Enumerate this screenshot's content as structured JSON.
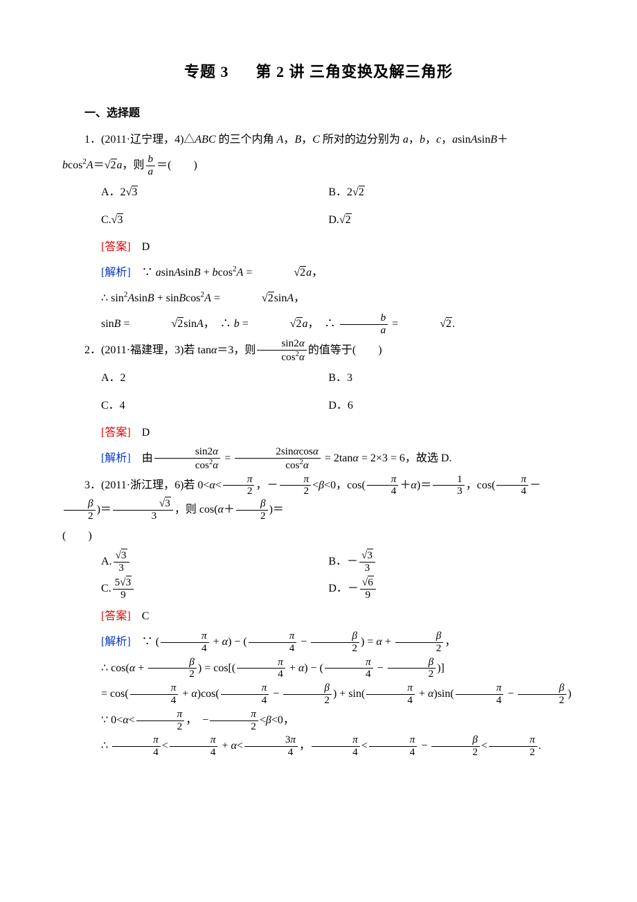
{
  "title_prefix": "专题 3",
  "title_main": "第 2 讲  三角变换及解三角形",
  "section_heading": "一、选择题",
  "colors": {
    "answer": "#e00000",
    "analysis": "#0033cc",
    "text": "#000000",
    "bg": "#ffffff"
  },
  "q1": {
    "stem_a": "1．(2011·辽宁理，4)△",
    "stem_b": "ABC",
    "stem_c": " 的三个内角 ",
    "stem_d": "A",
    "stem_e": "，",
    "stem_f": "B",
    "stem_g": "，",
    "stem_h": "C",
    "stem_i": " 所对的边分别为 ",
    "stem_j": "a",
    "stem_k": "，",
    "stem_l": "b",
    "stem_m": "，",
    "stem_n": "c",
    "stem_o": "，",
    "stem_p": "a",
    "stem_q": "sin",
    "stem_r": "A",
    "stem_s": "sin",
    "stem_t": "B",
    "stem_u": "＋",
    "line2_a": "b",
    "line2_b": "cos",
    "line2_sup": "2",
    "line2_c": "A",
    "line2_d": "＝",
    "line2_e": "2",
    "line2_f": "a",
    "line2_g": "，则",
    "frac_num": "b",
    "frac_den": "a",
    "line2_h": "＝(　　)",
    "optA": "A．2",
    "optA_rad": "3",
    "optB": "B．2",
    "optB_rad": "2",
    "optC": "C.",
    "optC_rad": "3",
    "optD": "D.",
    "optD_rad": "2",
    "ans_label": "[答案]",
    "ans": "D",
    "ana_label": "[解析]",
    "ana1_a": "∵ ",
    "ana1_b": "a",
    "ana1_c": "sin",
    "ana1_d": "A",
    "ana1_e": "sin",
    "ana1_f": "B",
    "ana1_g": " + ",
    "ana1_h": "b",
    "ana1_i": "cos",
    "ana1_j": "A",
    "ana1_k": " = ",
    "ana1_rad": "2",
    "ana1_l": "a",
    "ana1_m": "，",
    "ana2_a": "∴ sin",
    "ana2_b": "A",
    "ana2_c": "sin",
    "ana2_d": "B",
    "ana2_e": " + sin",
    "ana2_f": "B",
    "ana2_g": "cos",
    "ana2_h": "A",
    "ana2_i": " = ",
    "ana2_rad": "2",
    "ana2_j": "sin",
    "ana2_k": "A",
    "ana2_l": "，",
    "ana3_a": "sin",
    "ana3_b": "B",
    "ana3_c": " = ",
    "ana3_rad1": "2",
    "ana3_d": "sin",
    "ana3_e": "A",
    "ana3_f": "，　∴ ",
    "ana3_g": "b",
    "ana3_h": " = ",
    "ana3_rad2": "2",
    "ana3_i": "a",
    "ana3_j": "，　∴ ",
    "ana3_k": " = ",
    "ana3_rad3": "2",
    "ana3_l": "."
  },
  "q2": {
    "stem_a": "2．(2011·福建理，3)若 tan",
    "stem_b": "α",
    "stem_c": "＝3，则",
    "frac1_num_a": "sin2",
    "frac1_num_b": "α",
    "frac1_den_a": "cos",
    "frac1_den_b": "α",
    "stem_d": "的值等于(　　)",
    "optA": "A．2",
    "optB": "B．3",
    "optC": "C．4",
    "optD": "D．6",
    "ans_label": "[答案]",
    "ans": "D",
    "ana_label": "[解析]",
    "ana_a": "由",
    "ana_eq": " = ",
    "frac2_num_a": "2sin",
    "frac2_num_b": "α",
    "frac2_num_c": "cos",
    "frac2_num_d": "α",
    "ana_b": " = 2tan",
    "ana_c": "α",
    "ana_d": " = 2×3 = 6，故选 D."
  },
  "q3": {
    "stem_a": "3．(2011·浙江理，6)若 0<",
    "alpha": "α",
    "lt": "<",
    "comma": "，",
    "neg": "－",
    "beta": "β",
    "lt0": "<0，cos(",
    "plus": "＋",
    "rpar": ")＝",
    "comma2": "，cos(",
    "minus": "－",
    "rpar2": ")＝",
    "tail": "，则 cos(",
    "rpar3": ")＝",
    "line2": "(　　)",
    "pi": "π",
    "n2": "2",
    "n4": "4",
    "n3": "3",
    "n1": "1",
    "sqrt3": "3",
    "optA": "A.",
    "optB": "B．－",
    "optC": "C.",
    "optC_num": "5",
    "optC_rad": "3",
    "optC_den": "9",
    "optD": "D．－",
    "optD_rad": "6",
    "optD_den": "9",
    "ans_label": "[答案]",
    "ans": "C",
    "ana_label": "[解析]",
    "ana1_a": "∵ (",
    "ana1_b": " + ",
    "ana1_c": ") − (",
    "ana1_d": " − ",
    "ana1_e": ") = ",
    "ana1_f": " + ",
    "ana1_g": "，",
    "ana2_a": "∴ cos(",
    "ana2_b": ") = cos[(",
    "ana2_c": ") − (",
    "ana2_d": ")]",
    "ana3_a": "= cos(",
    "ana3_b": ")cos(",
    "ana3_c": ") + sin(",
    "ana3_d": ")sin(",
    "ana3_e": ")",
    "ana4_a": "∵ 0<",
    "ana4_b": "，　−",
    "ana4_c": "<0，",
    "ana5_a": "∴ ",
    "ana5_b": "，",
    "n3pi": "3π"
  }
}
